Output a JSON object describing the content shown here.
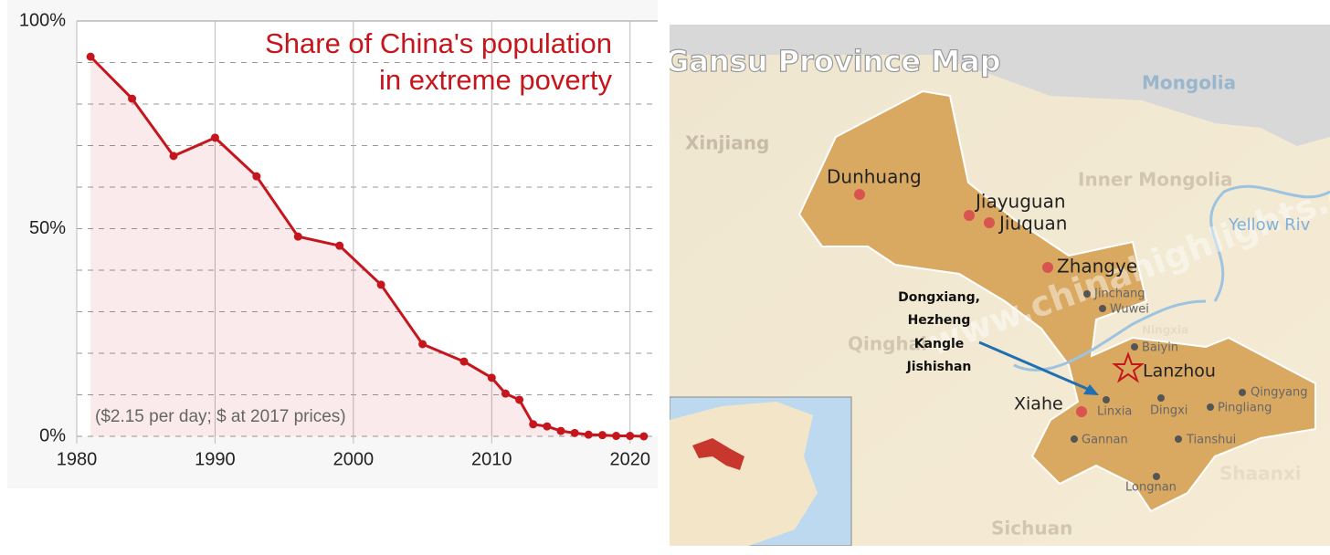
{
  "chart_data": {
    "type": "line",
    "title": [
      "Share of China's population",
      "in extreme poverty"
    ],
    "note": "($2.15 per day; $ at 2017 prices)",
    "x": [
      1981,
      1984,
      1987,
      1990,
      1993,
      1996,
      1999,
      2002,
      2005,
      2008,
      2010,
      2011,
      2012,
      2013,
      2014,
      2015,
      2016,
      2017,
      2018,
      2019,
      2020,
      2021
    ],
    "series": [
      {
        "name": "Share of China's population in extreme poverty",
        "color": "#c4161c",
        "values": [
          91.4,
          81.3,
          67.5,
          71.9,
          62.6,
          48.1,
          45.9,
          36.5,
          22.2,
          18.0,
          14.1,
          10.3,
          8.8,
          2.9,
          2.4,
          1.3,
          0.8,
          0.4,
          0.3,
          0.1,
          0.1,
          0.0
        ]
      }
    ],
    "xlim": [
      1980,
      2022
    ],
    "xticks": [
      1980,
      1990,
      2000,
      2010,
      2020
    ],
    "ylim": [
      0,
      100
    ],
    "yticks": [
      {
        "value": 0,
        "label": "0%"
      },
      {
        "value": 50,
        "label": "50%"
      },
      {
        "value": 100,
        "label": "100%"
      }
    ],
    "yminor": [
      10,
      20,
      30,
      40,
      60,
      70,
      80,
      90
    ],
    "grid": true,
    "area_fill": true
  },
  "map": {
    "title": "Gansu Province Map",
    "regions": [
      "Mongolia",
      "Xinjiang",
      "Inner Mongolia",
      "Yellow Riv",
      "Qinghai",
      "Ningxia",
      "Shaanxi",
      "Sichuan"
    ],
    "cities": [
      "Dunhuang",
      "Jiayuguan",
      "Jiuquan",
      "Zhangye",
      "Jinchang",
      "Wuwei",
      "Baiyin",
      "Lanzhou",
      "Xiahe",
      "Linxia",
      "Dingxi",
      "Qingyang",
      "Pingliang",
      "Gannan",
      "Tianshui",
      "Longnan"
    ],
    "annotation": [
      "Dongxiang,",
      "Hezheng",
      "Kangle",
      "Jishishan"
    ],
    "watermark": "www.chinahighlights.com"
  }
}
